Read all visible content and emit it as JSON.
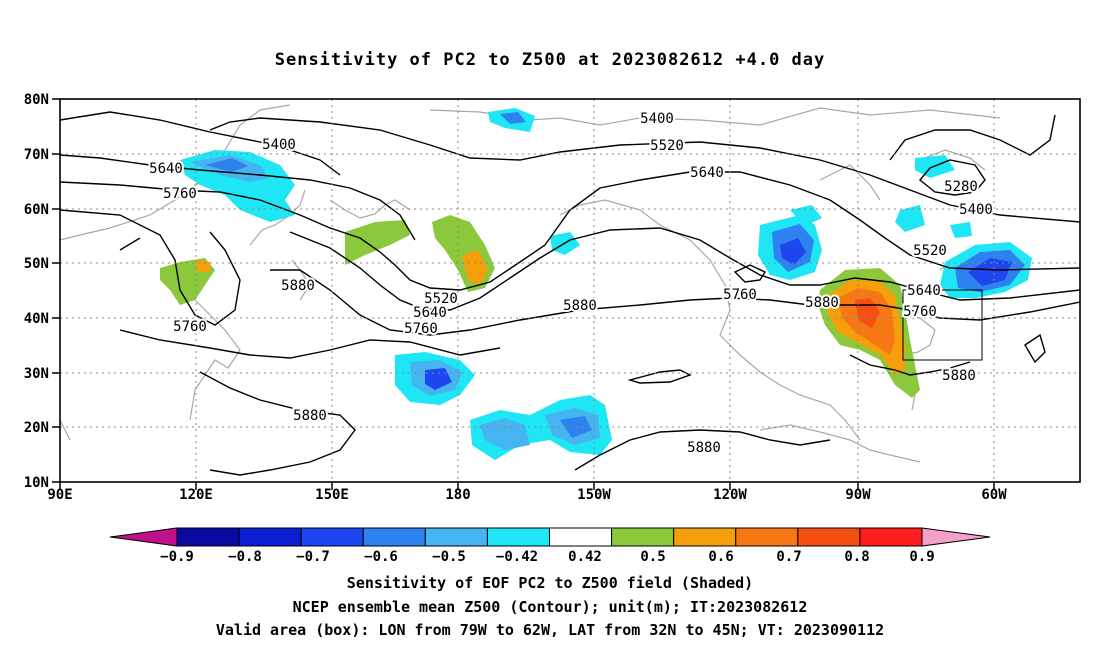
{
  "title": "Sensitivity of PC2 to Z500 at 2023082612 +4.0 day",
  "lat_ticks": [
    "80N",
    "70N",
    "60N",
    "50N",
    "40N",
    "30N",
    "20N",
    "10N"
  ],
  "lon_ticks": [
    "90E",
    "120E",
    "150E",
    "180",
    "150W",
    "120W",
    "90W",
    "60W"
  ],
  "contour_labels": [
    {
      "value": "5400"
    },
    {
      "value": "5400"
    },
    {
      "value": "5400"
    },
    {
      "value": "5520"
    },
    {
      "value": "5520"
    },
    {
      "value": "5520"
    },
    {
      "value": "5640"
    },
    {
      "value": "5640"
    },
    {
      "value": "5640"
    },
    {
      "value": "5640"
    },
    {
      "value": "5760"
    },
    {
      "value": "5760"
    },
    {
      "value": "5760"
    },
    {
      "value": "5760"
    },
    {
      "value": "5760"
    },
    {
      "value": "5880"
    },
    {
      "value": "5880"
    },
    {
      "value": "5880"
    },
    {
      "value": "5880"
    },
    {
      "value": "5880"
    },
    {
      "value": "5880"
    },
    {
      "value": "5280"
    }
  ],
  "colorbar": {
    "colors": [
      "#c0108c",
      "#0a0aa0",
      "#0a1ed2",
      "#1e46f0",
      "#2e82f0",
      "#46b4f0",
      "#1ee6f5",
      "#ffffff",
      "#8cc83c",
      "#f5a00a",
      "#f57814",
      "#f55014",
      "#ff1e1e",
      "#f5a0c8"
    ],
    "labels": [
      "−0.9",
      "−0.8",
      "−0.7",
      "−0.6",
      "−0.5",
      "−0.42",
      "0.42",
      "0.5",
      "0.6",
      "0.7",
      "0.8",
      "0.9"
    ]
  },
  "footer": {
    "line1": "Sensitivity of EOF PC2 to Z500 field (Shaded)",
    "line2": "NCEP ensemble mean Z500 (Contour); unit(m); IT:2023082612",
    "line3": "Valid area (box): LON from 79W to 62W, LAT from 32N to 45N; VT: 2023090112"
  },
  "valid_box": {
    "lon_min": "79W",
    "lon_max": "62W",
    "lat_min": "32N",
    "lat_max": "45N"
  }
}
